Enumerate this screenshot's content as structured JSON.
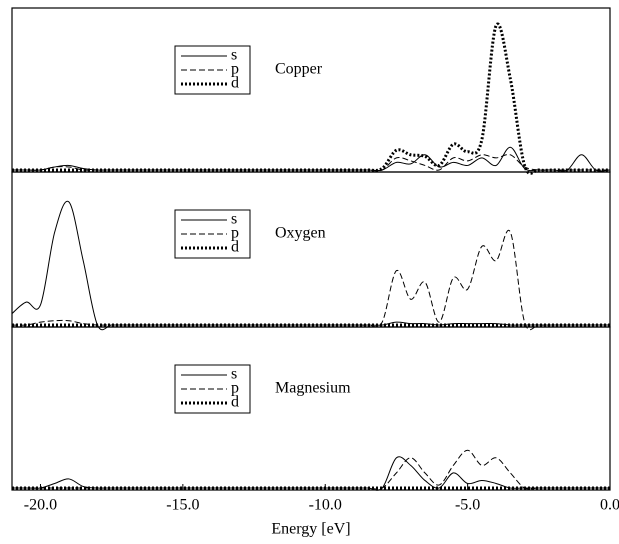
{
  "chart_data": [
    {
      "type": "line",
      "annotation": "Copper",
      "x": [
        -21,
        -20.5,
        -20,
        -19.5,
        -19,
        -18.5,
        -18,
        -17.5,
        -17,
        -16.5,
        -16,
        -15.5,
        -15,
        -14.5,
        -14,
        -13.5,
        -13,
        -12.5,
        -12,
        -11.5,
        -11,
        -10.5,
        -10,
        -9.5,
        -9,
        -8.5,
        -8,
        -7.5,
        -7,
        -6.5,
        -6,
        -5.5,
        -5,
        -4.5,
        -4,
        -3.5,
        -3,
        -2.5,
        -2,
        -1.5,
        -1,
        -0.5,
        0
      ],
      "xlim": [
        -21,
        0
      ],
      "ylim": [
        0,
        100
      ],
      "series": [
        {
          "name": "s",
          "color": "#000000",
          "style": "solid",
          "values": [
            0,
            0,
            0,
            2,
            3,
            1,
            0,
            0,
            0,
            0,
            0,
            0,
            0,
            0,
            0,
            0,
            0,
            0,
            0,
            0,
            0,
            0,
            0,
            0,
            0,
            0,
            0,
            5,
            4,
            10,
            2,
            5,
            3,
            8,
            3,
            15,
            1,
            0,
            0,
            0,
            10,
            0,
            0
          ]
        },
        {
          "name": "p",
          "color": "#000000",
          "style": "dashed",
          "values": [
            0,
            0,
            0,
            2,
            2,
            0,
            0,
            0,
            0,
            0,
            0,
            0,
            0,
            0,
            0,
            0,
            0,
            0,
            0,
            0,
            0,
            0,
            0,
            0,
            0,
            0,
            0,
            8,
            6,
            3,
            0,
            8,
            6,
            10,
            8,
            10,
            2,
            0,
            0,
            0,
            0,
            0,
            0
          ]
        },
        {
          "name": "d",
          "color": "#000000",
          "style": "dotted",
          "values": [
            0,
            0,
            0,
            0,
            0,
            0,
            0,
            0,
            0,
            0,
            0,
            0,
            0,
            0,
            0,
            0,
            0,
            0,
            0,
            0,
            0,
            0,
            0,
            0,
            0,
            0,
            1,
            13,
            10,
            9,
            3,
            17,
            12,
            20,
            95,
            60,
            3,
            0,
            0,
            0,
            0,
            0,
            0
          ]
        }
      ]
    },
    {
      "type": "line",
      "annotation": "Oxygen",
      "x": [
        -21,
        -20.5,
        -20,
        -19.5,
        -19,
        -18.5,
        -18,
        -17.5,
        -17,
        -16.5,
        -16,
        -15.5,
        -15,
        -14.5,
        -14,
        -13.5,
        -13,
        -12.5,
        -12,
        -11.5,
        -11,
        -10.5,
        -10,
        -9.5,
        -9,
        -8.5,
        -8,
        -7.5,
        -7,
        -6.5,
        -6,
        -5.5,
        -5,
        -4.5,
        -4,
        -3.5,
        -3,
        -2.5,
        -2,
        -1.5,
        -1,
        -0.5,
        0
      ],
      "xlim": [
        -21,
        0
      ],
      "ylim": [
        0,
        100
      ],
      "series": [
        {
          "name": "s",
          "color": "#000000",
          "style": "solid",
          "values": [
            8,
            16,
            14,
            65,
            86,
            45,
            0,
            0,
            0,
            0,
            0,
            0,
            0,
            0,
            0,
            0,
            0,
            0,
            0,
            0,
            0,
            0,
            0,
            0,
            0,
            0,
            0,
            2,
            1,
            1,
            0,
            1,
            1,
            1,
            1,
            0,
            0,
            0,
            0,
            0,
            0,
            0,
            0
          ]
        },
        {
          "name": "p",
          "color": "#000000",
          "style": "dashed",
          "values": [
            0,
            0,
            2,
            3,
            3,
            1,
            0,
            0,
            0,
            0,
            0,
            0,
            0,
            0,
            0,
            0,
            0,
            0,
            0,
            0,
            0,
            0,
            0,
            0,
            0,
            0,
            2,
            38,
            18,
            30,
            2,
            33,
            25,
            55,
            45,
            65,
            2,
            0,
            0,
            0,
            0,
            0,
            0
          ]
        },
        {
          "name": "d",
          "color": "#000000",
          "style": "dotted",
          "values": [
            0,
            0,
            0,
            0,
            0,
            0,
            0,
            0,
            0,
            0,
            0,
            0,
            0,
            0,
            0,
            0,
            0,
            0,
            0,
            0,
            0,
            0,
            0,
            0,
            0,
            0,
            0,
            0,
            0,
            0,
            0,
            0,
            0,
            0,
            0,
            0,
            0,
            0,
            0,
            0,
            0,
            0,
            0
          ]
        }
      ]
    },
    {
      "type": "line",
      "annotation": "Magnesium",
      "x": [
        -21,
        -20.5,
        -20,
        -19.5,
        -19,
        -18.5,
        -18,
        -17.5,
        -17,
        -16.5,
        -16,
        -15.5,
        -15,
        -14.5,
        -14,
        -13.5,
        -13,
        -12.5,
        -12,
        -11.5,
        -11,
        -10.5,
        -10,
        -9.5,
        -9,
        -8.5,
        -8,
        -7.5,
        -7,
        -6.5,
        -6,
        -5.5,
        -5,
        -4.5,
        -4,
        -3.5,
        -3,
        -2.5,
        -2,
        -1.5,
        -1,
        -0.5,
        0
      ],
      "xlim": [
        -21,
        0
      ],
      "ylim": [
        0,
        100
      ],
      "x_label": "Energy [eV]",
      "xticks": [
        {
          "value": -20,
          "label": "-20.0"
        },
        {
          "value": -15,
          "label": "-15.0"
        },
        {
          "value": -10,
          "label": "-10.0"
        },
        {
          "value": -5,
          "label": "-5.0"
        },
        {
          "value": 0,
          "label": "0.0"
        }
      ],
      "series": [
        {
          "name": "s",
          "color": "#000000",
          "style": "solid",
          "values": [
            0,
            0,
            0,
            3,
            6,
            1,
            0,
            0,
            0,
            0,
            0,
            0,
            0,
            0,
            0,
            0,
            0,
            0,
            0,
            0,
            0,
            0,
            0,
            0,
            0,
            0,
            0,
            20,
            15,
            5,
            0,
            10,
            3,
            5,
            3,
            0,
            0,
            0,
            0,
            0,
            0,
            0,
            0
          ]
        },
        {
          "name": "p",
          "color": "#000000",
          "style": "dashed",
          "values": [
            0,
            0,
            0,
            0,
            0,
            0,
            0,
            0,
            0,
            0,
            0,
            0,
            0,
            0,
            0,
            0,
            0,
            0,
            0,
            0,
            0,
            0,
            0,
            0,
            0,
            0,
            0,
            10,
            20,
            10,
            2,
            15,
            25,
            15,
            20,
            10,
            0,
            0,
            0,
            0,
            0,
            0,
            0
          ]
        },
        {
          "name": "d",
          "color": "#000000",
          "style": "dotted",
          "values": [
            0,
            0,
            0,
            0,
            0,
            0,
            0,
            0,
            0,
            0,
            0,
            0,
            0,
            0,
            0,
            0,
            0,
            0,
            0,
            0,
            0,
            0,
            0,
            0,
            0,
            0,
            0,
            0,
            0,
            0,
            0,
            0,
            0,
            0,
            0,
            0,
            0,
            0,
            0,
            0,
            0,
            0,
            0
          ]
        }
      ]
    }
  ]
}
